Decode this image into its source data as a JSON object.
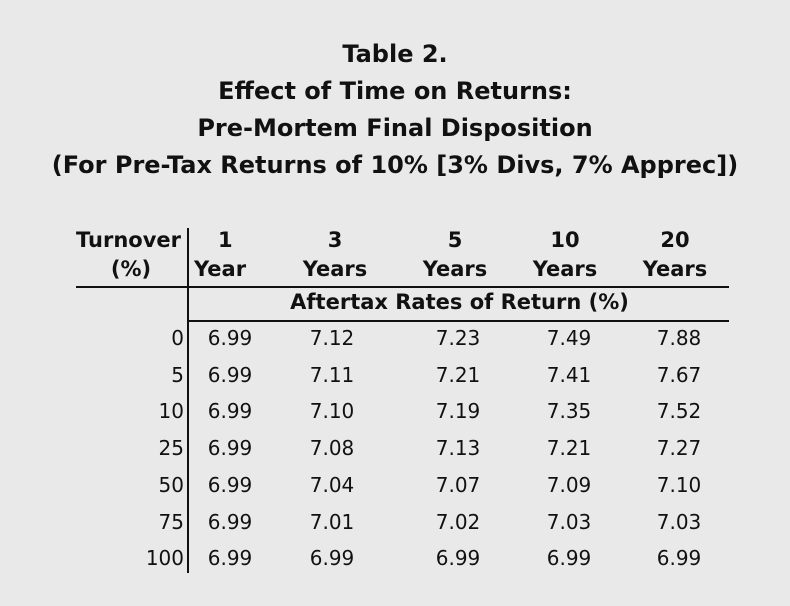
{
  "title": {
    "line1": "Table 2.",
    "line2": "Effect of Time on Returns:",
    "line3": "Pre-Mortem Final Disposition",
    "line4": "(For Pre-Tax Returns of 10% [3% Divs, 7% Apprec])"
  },
  "table": {
    "turnover_header": [
      "Turnover",
      "(%)"
    ],
    "columns": [
      {
        "top": "1",
        "bottom": "Year"
      },
      {
        "top": "3",
        "bottom": "Years"
      },
      {
        "top": "5",
        "bottom": "Years"
      },
      {
        "top": "10",
        "bottom": "Years"
      },
      {
        "top": "20",
        "bottom": "Years"
      }
    ],
    "subheader": "Aftertax Rates of Return (%)",
    "rows": [
      {
        "turnover": "0",
        "values": [
          "6.99",
          "7.12",
          "7.23",
          "7.49",
          "7.88"
        ]
      },
      {
        "turnover": "5",
        "values": [
          "6.99",
          "7.11",
          "7.21",
          "7.41",
          "7.67"
        ]
      },
      {
        "turnover": "10",
        "values": [
          "6.99",
          "7.10",
          "7.19",
          "7.35",
          "7.52"
        ]
      },
      {
        "turnover": "25",
        "values": [
          "6.99",
          "7.08",
          "7.13",
          "7.21",
          "7.27"
        ]
      },
      {
        "turnover": "50",
        "values": [
          "6.99",
          "7.04",
          "7.07",
          "7.09",
          "7.10"
        ]
      },
      {
        "turnover": "75",
        "values": [
          "6.99",
          "7.01",
          "7.02",
          "7.03",
          "7.03"
        ]
      },
      {
        "turnover": "100",
        "values": [
          "6.99",
          "6.99",
          "6.99",
          "6.99",
          "6.99"
        ]
      }
    ]
  }
}
